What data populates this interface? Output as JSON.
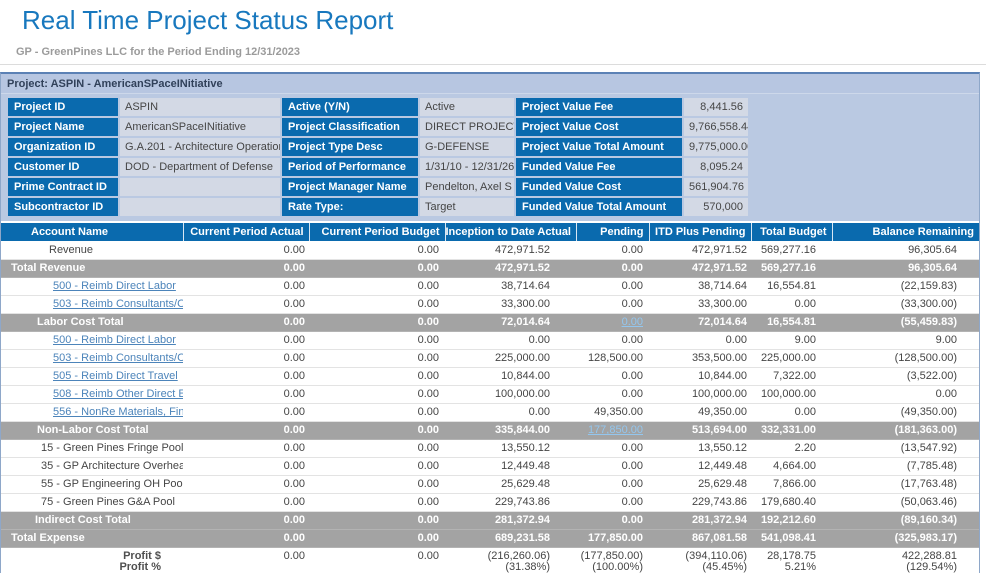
{
  "header": {
    "title": "Real Time Project Status Report",
    "subtitle": "GP - GreenPines LLC for the Period Ending 12/31/2023"
  },
  "project_bar": "Project: ASPIN - AmericanSPaceINitiative",
  "colors": {
    "title_blue": "#1878be",
    "header_blue": "#0a6aae",
    "panel_bg": "#bac9e2",
    "value_cell_bg": "#d3d9e5",
    "total_gray": "#a3a3a3",
    "link_blue": "#4c84ba",
    "link_on_gray": "#93c6ee",
    "project_bar_bg": "#b7c6e1"
  },
  "info": {
    "groups": [
      [
        {
          "label": "Project ID",
          "value": "ASPIN"
        },
        {
          "label": "Project Name",
          "value": "AmericanSPaceINitiative"
        },
        {
          "label": "Organization ID",
          "value": "G.A.201 - Architecture Operations"
        },
        {
          "label": "Customer ID",
          "value": "DOD - Department of Defense"
        },
        {
          "label": "Prime Contract ID",
          "value": ""
        },
        {
          "label": "Subcontractor ID",
          "value": ""
        }
      ],
      [
        {
          "label": "Active (Y/N)",
          "value": "Active"
        },
        {
          "label": "Project Classification",
          "value": "DIRECT PROJECT"
        },
        {
          "label": "Project Type Desc",
          "value": "G-DEFENSE"
        },
        {
          "label": "Period of Performance",
          "value": "1/31/10 - 12/31/26"
        },
        {
          "label": "Project Manager Name",
          "value": "Pendelton, Axel S"
        },
        {
          "label": "Rate Type:",
          "value": "Target"
        }
      ],
      [
        {
          "label": "Project Value Fee",
          "value": "8,441.56"
        },
        {
          "label": "Project Value Cost",
          "value": "9,766,558.44"
        },
        {
          "label": "Project Value Total Amount",
          "value": "9,775,000.00"
        },
        {
          "label": "Funded Value Fee",
          "value": "8,095.24"
        },
        {
          "label": "Funded Value Cost",
          "value": "561,904.76"
        },
        {
          "label": "Funded Value Total Amount",
          "value": "570,000"
        }
      ]
    ]
  },
  "table": {
    "columns": [
      "Account Name",
      "Current Period Actual",
      "Current Period Budget",
      "Inception to Date Actual",
      "Pending",
      "ITD Plus Pending",
      "Total Budget",
      "Balance Remaining"
    ],
    "rows": [
      {
        "name": "Revenue",
        "style": "plain",
        "indent": 48,
        "values": [
          "0.00",
          "0.00",
          "472,971.52",
          "0.00",
          "472,971.52",
          "569,277.16",
          "96,305.64"
        ]
      },
      {
        "name": "Total Revenue",
        "style": "total",
        "indent": 10,
        "values": [
          "0.00",
          "0.00",
          "472,971.52",
          "0.00",
          "472,971.52",
          "569,277.16",
          "96,305.64"
        ]
      },
      {
        "name": "500 - Reimb Direct Labor",
        "style": "link",
        "indent": 52,
        "values": [
          "0.00",
          "0.00",
          "38,714.64",
          "0.00",
          "38,714.64",
          "16,554.81",
          "(22,159.83)"
        ]
      },
      {
        "name": "503 - Reimb Consultants/Contrac",
        "style": "link",
        "indent": 52,
        "values": [
          "0.00",
          "0.00",
          "33,300.00",
          "0.00",
          "33,300.00",
          "0.00",
          "(33,300.00)"
        ]
      },
      {
        "name": "Labor Cost Total",
        "style": "total",
        "indent": 36,
        "pending_link": true,
        "values": [
          "0.00",
          "0.00",
          "72,014.64",
          "0.00",
          "72,014.64",
          "16,554.81",
          "(55,459.83)"
        ]
      },
      {
        "name": "500 - Reimb Direct Labor",
        "style": "link",
        "indent": 52,
        "values": [
          "0.00",
          "0.00",
          "0.00",
          "0.00",
          "0.00",
          "9.00",
          "9.00"
        ]
      },
      {
        "name": "503 - Reimb Consultants/Contrac",
        "style": "link",
        "indent": 52,
        "values": [
          "0.00",
          "0.00",
          "225,000.00",
          "128,500.00",
          "353,500.00",
          "225,000.00",
          "(128,500.00)"
        ]
      },
      {
        "name": "505 - Reimb Direct Travel",
        "style": "link",
        "indent": 52,
        "values": [
          "0.00",
          "0.00",
          "10,844.00",
          "0.00",
          "10,844.00",
          "7,322.00",
          "(3,522.00)"
        ]
      },
      {
        "name": "508 - Reimb Other Direct Expens",
        "style": "link",
        "indent": 52,
        "values": [
          "0.00",
          "0.00",
          "100,000.00",
          "0.00",
          "100,000.00",
          "100,000.00",
          "0.00"
        ]
      },
      {
        "name": "556 - NonRe Materials, Finished",
        "style": "link",
        "indent": 52,
        "values": [
          "0.00",
          "0.00",
          "0.00",
          "49,350.00",
          "49,350.00",
          "0.00",
          "(49,350.00)"
        ]
      },
      {
        "name": "Non-Labor Cost Total",
        "style": "total",
        "indent": 36,
        "pending_link": true,
        "values": [
          "0.00",
          "0.00",
          "335,844.00",
          "177,850.00",
          "513,694.00",
          "332,331.00",
          "(181,363.00)"
        ]
      },
      {
        "name": "15 - Green Pines Fringe Pool",
        "style": "plain",
        "indent": 40,
        "values": [
          "0.00",
          "0.00",
          "13,550.12",
          "0.00",
          "13,550.12",
          "2.20",
          "(13,547.92)"
        ]
      },
      {
        "name": "35 - GP Architecture Overhead",
        "style": "plain",
        "indent": 40,
        "values": [
          "0.00",
          "0.00",
          "12,449.48",
          "0.00",
          "12,449.48",
          "4,664.00",
          "(7,785.48)"
        ]
      },
      {
        "name": "55 - GP Engineering OH Pool",
        "style": "plain",
        "indent": 40,
        "values": [
          "0.00",
          "0.00",
          "25,629.48",
          "0.00",
          "25,629.48",
          "7,866.00",
          "(17,763.48)"
        ]
      },
      {
        "name": "75 - Green Pines G&A Pool",
        "style": "plain",
        "indent": 40,
        "values": [
          "0.00",
          "0.00",
          "229,743.86",
          "0.00",
          "229,743.86",
          "179,680.40",
          "(50,063.46)"
        ]
      },
      {
        "name": "Indirect Cost Total",
        "style": "total",
        "indent": 34,
        "values": [
          "0.00",
          "0.00",
          "281,372.94",
          "0.00",
          "281,372.94",
          "192,212.60",
          "(89,160.34)"
        ]
      },
      {
        "name": "Total Expense",
        "style": "total",
        "indent": 10,
        "values": [
          "0.00",
          "0.00",
          "689,231.58",
          "177,850.00",
          "867,081.58",
          "541,098.41",
          "(325,983.17)"
        ]
      }
    ],
    "profit": {
      "labels": [
        "Profit $",
        "Profit %"
      ],
      "dollar": [
        "0.00",
        "0.00",
        "(216,260.06)",
        "(177,850.00)",
        "(394,110.06)",
        "28,178.75",
        "422,288.81"
      ],
      "percent": [
        "",
        "",
        "(31.38%)",
        "(100.00%)",
        "(45.45%)",
        "5.21%",
        "(129.54%)"
      ]
    }
  }
}
